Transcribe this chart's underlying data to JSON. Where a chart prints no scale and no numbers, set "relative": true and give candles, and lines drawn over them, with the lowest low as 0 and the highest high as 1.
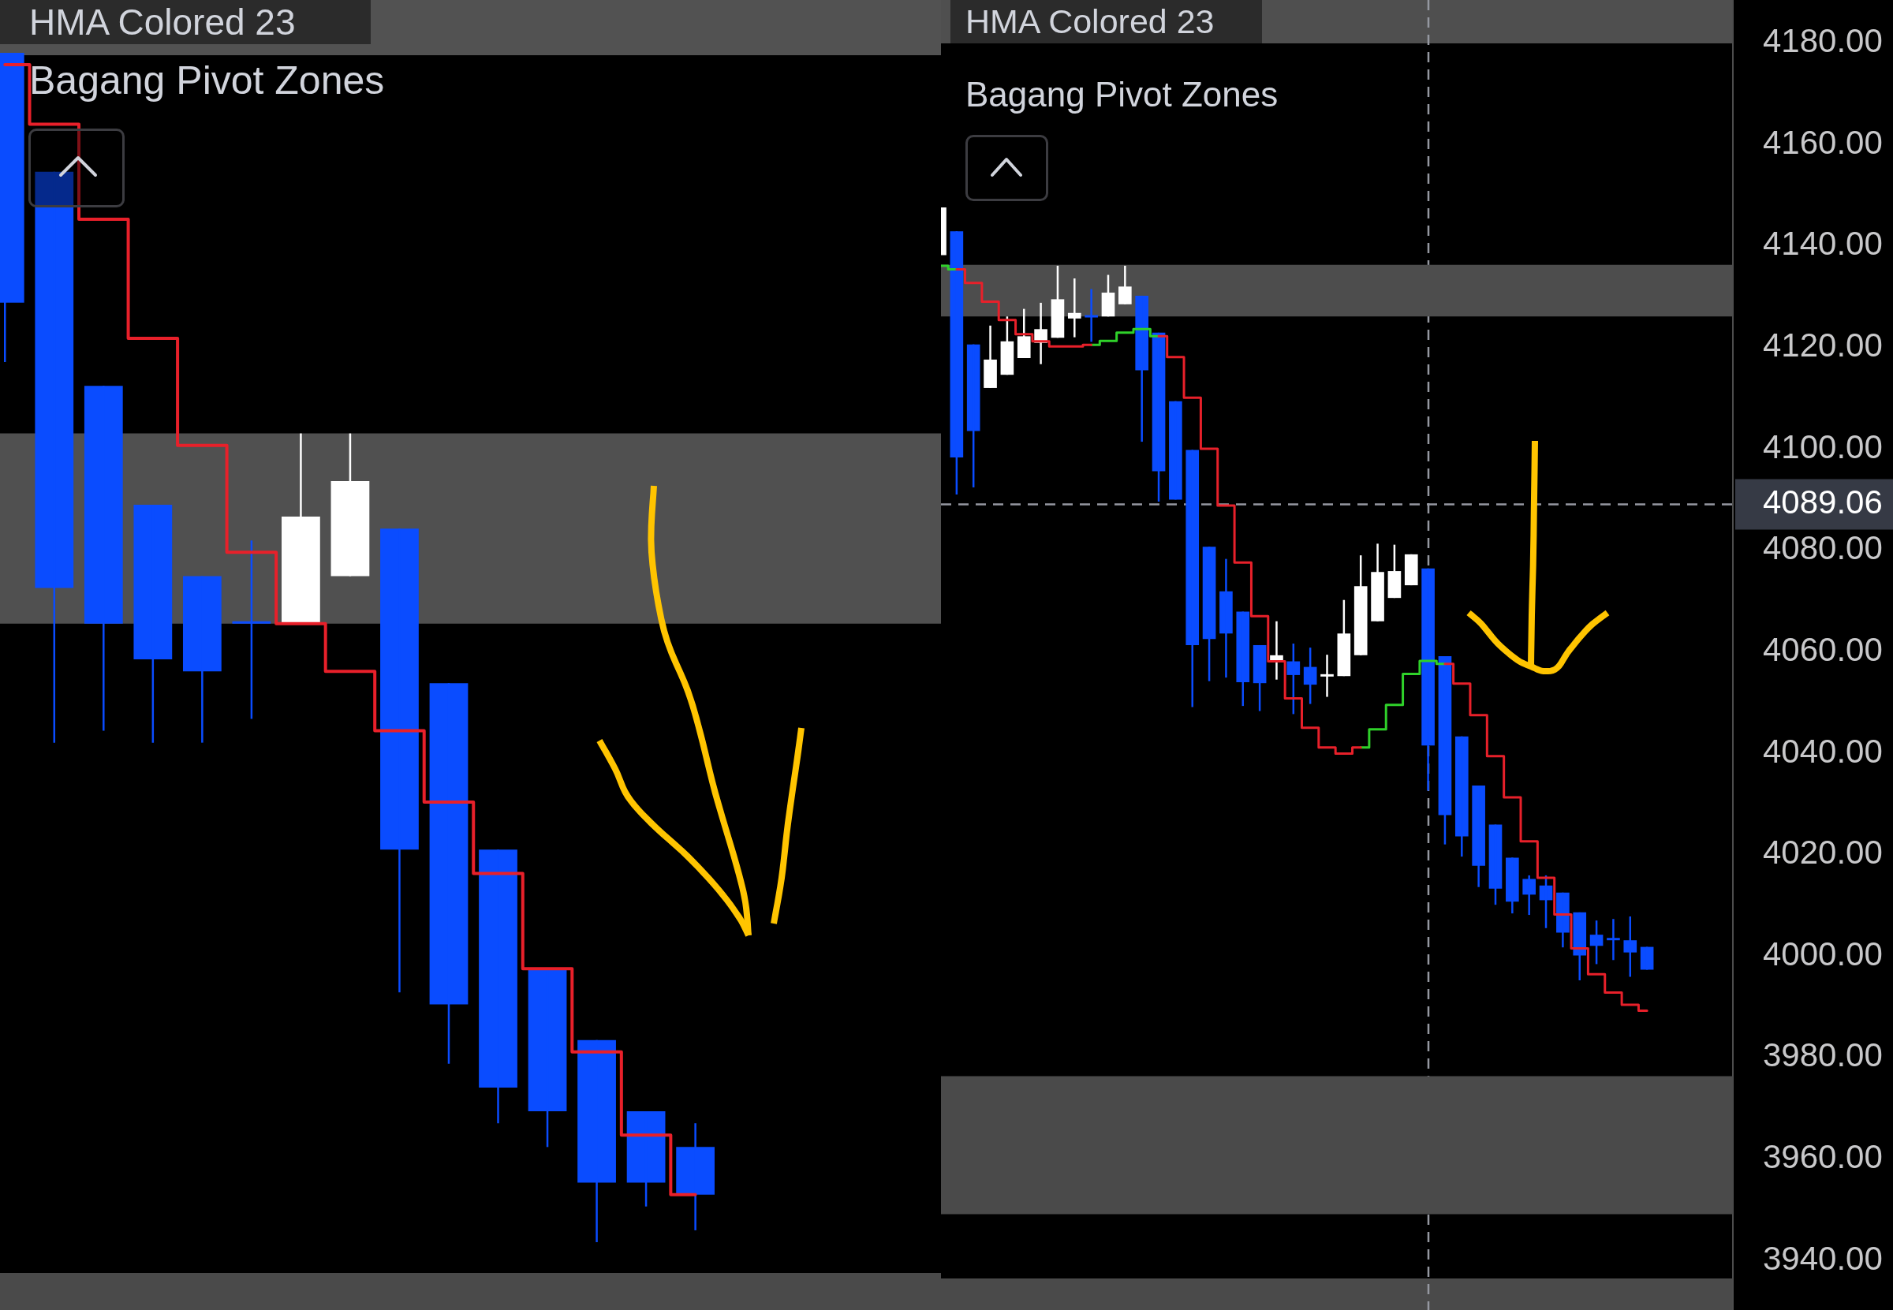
{
  "chart_data": [
    {
      "type": "candlestick",
      "title": "HMA Colored 23",
      "subtitle": "Bagang Pivot Zones",
      "relative": true,
      "tick_labels": false,
      "categories": [
        null,
        null,
        null,
        null,
        null,
        null,
        null,
        null,
        null,
        null,
        null,
        null,
        null,
        null,
        null
      ],
      "ohlc": [
        [
          1.0,
          1.0,
          0.74,
          0.79
        ],
        [
          0.9,
          0.9,
          0.42,
          0.55
        ],
        [
          0.72,
          0.72,
          0.43,
          0.52
        ],
        [
          0.62,
          0.62,
          0.42,
          0.49
        ],
        [
          0.56,
          0.56,
          0.42,
          0.48
        ],
        [
          0.52,
          0.59,
          0.44,
          0.52
        ],
        [
          0.52,
          0.68,
          0.52,
          0.61
        ],
        [
          0.56,
          0.68,
          0.56,
          0.64
        ],
        [
          0.6,
          0.6,
          0.21,
          0.33
        ],
        [
          0.47,
          0.47,
          0.15,
          0.2
        ],
        [
          0.33,
          0.33,
          0.1,
          0.13
        ],
        [
          0.23,
          0.23,
          0.08,
          0.11
        ],
        [
          0.17,
          0.17,
          0,
          0.05
        ],
        [
          0.11,
          0.11,
          0.03,
          0.05
        ],
        [
          0.08,
          0.1,
          0.01,
          0.04
        ]
      ],
      "colors": [
        "#0a4cff",
        "#0a4cff",
        "#0a4cff",
        "#0a4cff",
        "#0a4cff",
        "#0a4cff",
        "#ffffff",
        "#ffffff",
        "#0a4cff",
        "#0a4cff",
        "#0a4cff",
        "#0a4cff",
        "#0a4cff",
        "#0a4cff",
        "#0a4cff"
      ],
      "series": [
        {
          "type": "step",
          "color": "#e8202a",
          "values": [
            0.99,
            0.94,
            0.86,
            0.76,
            0.67,
            0.58,
            0.52,
            0.48,
            0.43,
            0.37,
            0.31,
            0.23,
            0.16,
            0.09,
            0.04
          ]
        }
      ],
      "bands": [
        {
          "axis": "y",
          "from": 0.52,
          "to": 0.68,
          "color": "#505050"
        }
      ]
    },
    {
      "type": "candlestick",
      "title": "HMA Colored 23",
      "subtitle": "Bagang Pivot Zones",
      "tick_labels": "y",
      "categories": [
        null,
        null,
        null,
        null,
        null,
        null,
        null,
        null,
        null,
        null,
        null,
        null,
        null,
        null,
        null,
        null,
        null,
        null,
        null,
        null,
        null,
        null,
        null,
        null,
        null,
        null,
        null,
        null,
        null,
        null,
        null,
        null,
        null,
        null,
        null,
        null,
        null,
        null,
        null,
        null,
        null,
        null,
        null
      ],
      "ylim": [
        3930.2,
        4188.5
      ],
      "yticks": [
        {
          "value": 3940,
          "label": "3940.00"
        },
        {
          "value": 3960,
          "label": "3960.00"
        },
        {
          "value": 3980,
          "label": "3980.00"
        },
        {
          "value": 4000,
          "label": "4000.00"
        },
        {
          "value": 4020,
          "label": "4020.00"
        },
        {
          "value": 4040,
          "label": "4040.00"
        },
        {
          "value": 4060,
          "label": "4060.00"
        },
        {
          "value": 4080,
          "label": "4080.00"
        },
        {
          "value": 4100,
          "label": "4100.00"
        },
        {
          "value": 4120,
          "label": "4120.00"
        },
        {
          "value": 4140,
          "label": "4140.00"
        },
        {
          "value": 4160,
          "label": "4160.00"
        },
        {
          "value": 4180,
          "label": "4180.00"
        }
      ],
      "ohlc": [
        [
          4138.2,
          4147.6,
          4138.2,
          4147.6
        ],
        [
          4142.9,
          4142.9,
          4091.0,
          4098.3
        ],
        [
          4120.6,
          4120.6,
          4092.4,
          4103.5
        ],
        [
          4112.0,
          4124.3,
          4112.0,
          4117.6
        ],
        [
          4114.6,
          4126.1,
          4114.6,
          4121.2
        ],
        [
          4117.9,
          4127.6,
          4117.9,
          4122.2
        ],
        [
          4120.9,
          4128.8,
          4116.7,
          4123.6
        ],
        [
          4121.9,
          4136.1,
          4121.9,
          4129.5
        ],
        [
          4125.7,
          4133.6,
          4122.0,
          4126.8
        ],
        [
          4125.9,
          4131.5,
          4121.1,
          4125.9
        ],
        [
          4126.1,
          4134.3,
          4126.1,
          4130.8
        ],
        [
          4128.5,
          4136.1,
          4128.5,
          4132.0
        ],
        [
          4130.2,
          4130.2,
          4101.4,
          4115.5
        ],
        [
          4122.9,
          4122.9,
          4089.6,
          4095.6
        ],
        [
          4109.4,
          4109.4,
          4090.0,
          4090.0
        ],
        [
          4099.8,
          4099.8,
          4049.1,
          4061.3
        ],
        [
          4080.7,
          4080.7,
          4054.2,
          4062.5
        ],
        [
          4071.9,
          4078.3,
          4054.9,
          4063.6
        ],
        [
          4067.9,
          4067.9,
          4049.3,
          4054.0
        ],
        [
          4061.3,
          4061.3,
          4048.3,
          4053.8
        ],
        [
          4057.9,
          4066.0,
          4054.5,
          4059.3
        ],
        [
          4058.1,
          4061.6,
          4047.7,
          4055.4
        ],
        [
          4057.0,
          4060.8,
          4049.7,
          4053.5
        ],
        [
          4055.1,
          4059.4,
          4051.1,
          4055.4
        ],
        [
          4055.2,
          4070.2,
          4055.2,
          4063.6
        ],
        [
          4059.3,
          4079.0,
          4059.3,
          4072.9
        ],
        [
          4066.0,
          4081.3,
          4066.0,
          4075.7
        ],
        [
          4070.6,
          4081.1,
          4070.6,
          4075.9
        ],
        [
          4073.1,
          4079.2,
          4073.1,
          4079.2
        ],
        [
          4076.4,
          4076.4,
          4032.6,
          4041.5
        ],
        [
          4059.1,
          4059.1,
          4022.0,
          4027.8
        ],
        [
          4043.3,
          4043.3,
          4019.6,
          4023.6
        ],
        [
          4033.6,
          4033.6,
          4013.6,
          4017.8
        ],
        [
          4025.9,
          4025.9,
          4010.1,
          4013.3
        ],
        [
          4019.4,
          4019.4,
          4008.4,
          4010.7
        ],
        [
          4015.2,
          4015.9,
          4008.1,
          4012.1
        ],
        [
          4013.9,
          4015.9,
          4005.5,
          4011.0
        ],
        [
          4012.5,
          4012.5,
          4001.7,
          4004.6
        ],
        [
          4008.6,
          4008.6,
          3995.2,
          4000.1
        ],
        [
          4004.2,
          4007.0,
          3998.4,
          4002.0
        ],
        [
          4003.1,
          4007.3,
          3999.2,
          4003.1
        ],
        [
          4003.1,
          4007.8,
          3995.9,
          4000.7
        ],
        [
          4001.8,
          4001.8,
          3997.3,
          3997.3
        ]
      ],
      "colors": [
        "#ffffff",
        "#0a4cff",
        "#0a4cff",
        "#ffffff",
        "#ffffff",
        "#ffffff",
        "#ffffff",
        "#ffffff",
        "#ffffff",
        "#0a4cff",
        "#ffffff",
        "#ffffff",
        "#0a4cff",
        "#0a4cff",
        "#0a4cff",
        "#0a4cff",
        "#0a4cff",
        "#0a4cff",
        "#0a4cff",
        "#0a4cff",
        "#ffffff",
        "#0a4cff",
        "#0a4cff",
        "#ffffff",
        "#ffffff",
        "#ffffff",
        "#ffffff",
        "#ffffff",
        "#ffffff",
        "#0a4cff",
        "#0a4cff",
        "#0a4cff",
        "#0a4cff",
        "#0a4cff",
        "#0a4cff",
        "#0a4cff",
        "#0a4cff",
        "#0a4cff",
        "#0a4cff",
        "#0a4cff",
        "#0a4cff",
        "#0a4cff",
        "#0a4cff"
      ],
      "series": [
        {
          "type": "step",
          "color": "#e8202a",
          "values": [
            null,
            4135.4,
            4132.7,
            4129.0,
            4125.4,
            4122.6,
            4121.2,
            4120.2,
            4120.2,
            4120.5,
            null,
            null,
            null,
            4122.2,
            4118.1,
            4110.1,
            4100.0,
            4088.8,
            4077.6,
            4067.0,
            4058.1,
            4050.8,
            4045.0,
            4041.1,
            4039.9,
            4041.1,
            null,
            null,
            null,
            null,
            4057.6,
            4053.7,
            4047.5,
            4039.4,
            4031.3,
            4022.6,
            4015.4,
            4008.2,
            4001.5,
            3996.4,
            3992.8,
            3990.4,
            3989.2
          ]
        },
        {
          "type": "step",
          "color": "#2fd12a",
          "values": [
            4136.1,
            4135.4,
            null,
            null,
            null,
            null,
            null,
            null,
            null,
            4120.5,
            4121.3,
            4122.9,
            4123.6,
            4122.2,
            null,
            null,
            null,
            null,
            null,
            null,
            null,
            null,
            null,
            null,
            null,
            4041.1,
            4044.7,
            4049.5,
            4055.6,
            4058.2,
            4057.6,
            null,
            null,
            null,
            null,
            null,
            null,
            null,
            null,
            null,
            null,
            null,
            null
          ]
        }
      ],
      "bands": [
        {
          "axis": "y",
          "from": 4126.1,
          "to": 4136.3,
          "color": "#4d4d4d"
        },
        {
          "axis": "y",
          "from": 3949.1,
          "to": 3976.3,
          "color": "#4a4a4a"
        }
      ],
      "ref_lines": [
        {
          "axis": "y",
          "value": 4089.06,
          "label": "4089.06",
          "line_style": "dashed",
          "color": "#9598a1"
        }
      ]
    }
  ]
}
